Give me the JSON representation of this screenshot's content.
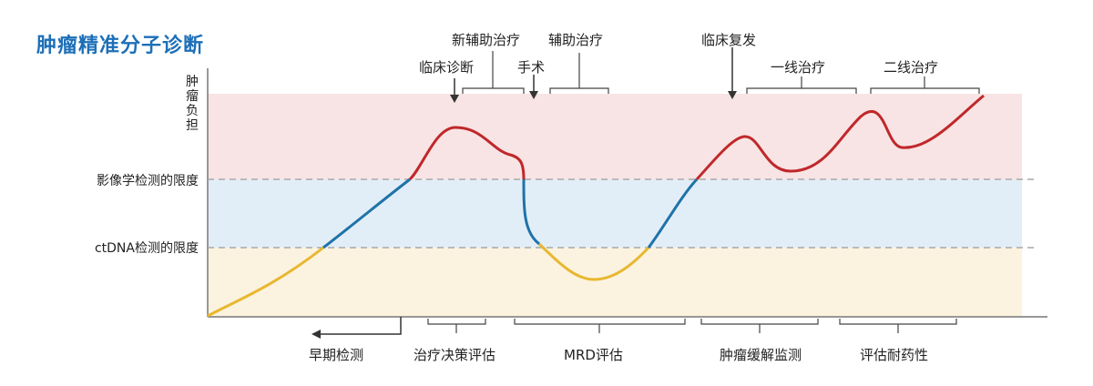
{
  "title": "肿瘤精准分子诊断",
  "y_axis_label": "肿瘤负担",
  "thresholds": {
    "imaging": "影像学检测的限度",
    "ctdna": "ctDNA检测的限度"
  },
  "top_labels": {
    "neoadjuvant": "新辅助治疗",
    "clinical_diagnosis": "临床诊断",
    "surgery": "手术",
    "adjuvant": "辅助治疗",
    "clinical_relapse": "临床复发",
    "first_line": "一线治疗",
    "second_line": "二线治疗"
  },
  "bottom_labels": {
    "early_detection": "早期检测",
    "treatment_decision": "治疗决策评估",
    "mrd": "MRD评估",
    "monitoring": "肿瘤缓解监测",
    "resistance": "评估耐药性"
  },
  "colors": {
    "title": "#1d6fb8",
    "zone_high": "#f8e4e4",
    "zone_mid": "#e2eef7",
    "zone_low": "#fbf3df",
    "curve_yellow": "#e8b730",
    "curve_blue": "#1f73a8",
    "curve_red": "#c0282b",
    "dashed": "#a8a8a8"
  }
}
